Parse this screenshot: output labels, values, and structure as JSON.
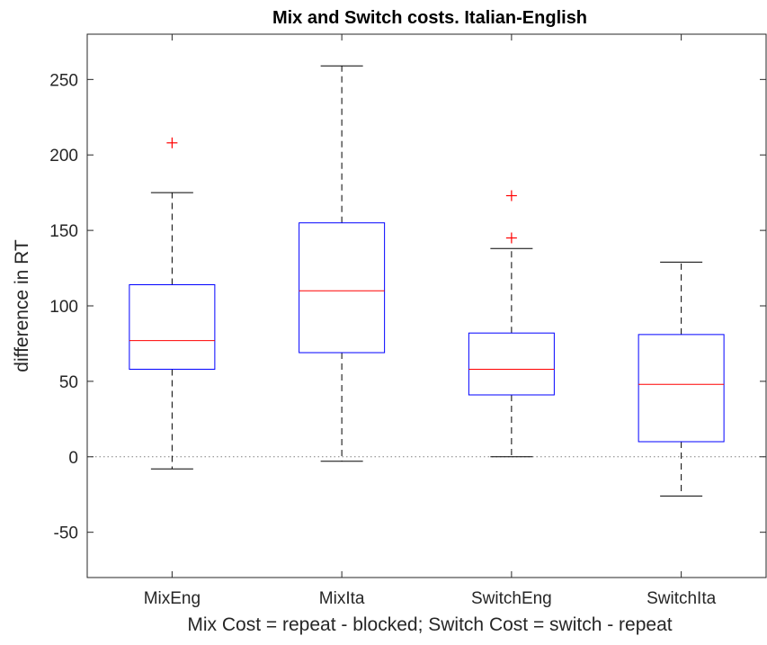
{
  "chart_data": {
    "type": "box",
    "title": "Mix and Switch costs. Italian-English",
    "xlabel": "Mix Cost = repeat - blocked; Switch Cost = switch - repeat",
    "ylabel": "difference in RT",
    "ylim": [
      -80,
      280
    ],
    "yticks": [
      -50,
      0,
      50,
      100,
      150,
      200,
      250
    ],
    "grid": false,
    "reference_line": 0,
    "colors": {
      "box": "#0000ff",
      "median": "#ff0000",
      "whisker": "#000000",
      "outlier": "#ff0000",
      "axis": "#262626",
      "reference": "#808080"
    },
    "categories": [
      "MixEng",
      "MixIta",
      "SwitchEng",
      "SwitchIta"
    ],
    "boxes": [
      {
        "name": "MixEng",
        "lower_whisker": -8,
        "q1": 58,
        "median": 77,
        "q3": 114,
        "upper_whisker": 175,
        "outliers": [
          208
        ]
      },
      {
        "name": "MixIta",
        "lower_whisker": -3,
        "q1": 69,
        "median": 110,
        "q3": 155,
        "upper_whisker": 259,
        "outliers": []
      },
      {
        "name": "SwitchEng",
        "lower_whisker": 0,
        "q1": 41,
        "median": 58,
        "q3": 82,
        "upper_whisker": 138,
        "outliers": [
          145,
          173
        ]
      },
      {
        "name": "SwitchIta",
        "lower_whisker": -26,
        "q1": 10,
        "median": 48,
        "q3": 81,
        "upper_whisker": 129,
        "outliers": []
      }
    ]
  }
}
